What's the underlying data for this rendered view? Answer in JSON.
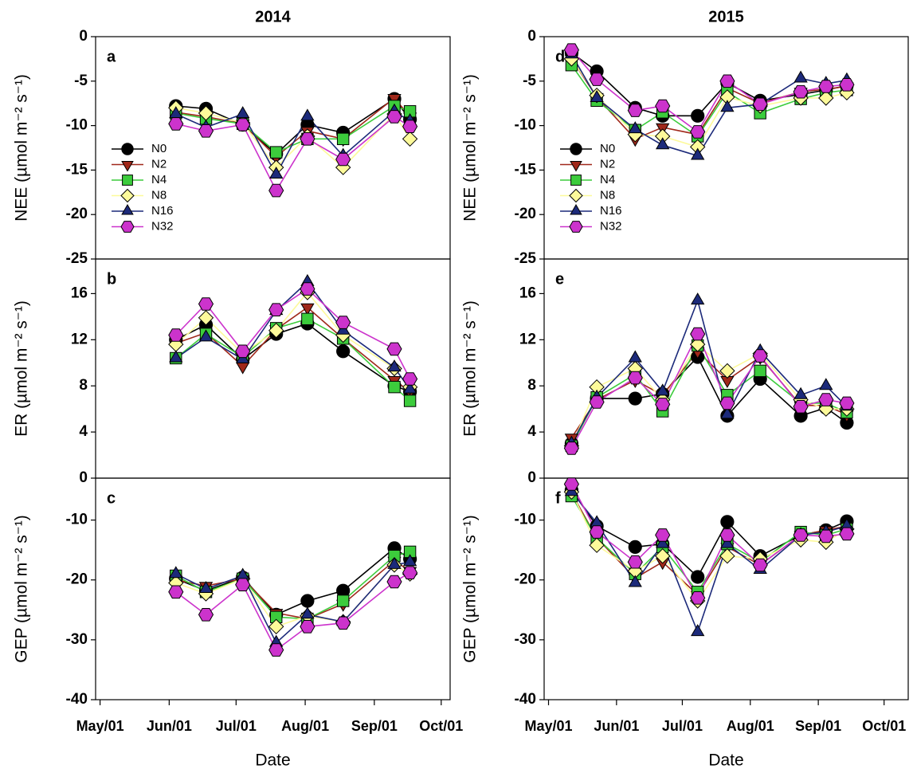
{
  "chart_data": [
    {
      "type": "line",
      "title": "2014",
      "label": "a",
      "ylabel": "NEE (µmol m⁻² s⁻¹)",
      "legend": true,
      "x": [
        155,
        168.5,
        185,
        200,
        214,
        230,
        253,
        260
      ],
      "xlim": [
        119,
        278
      ],
      "ylim": [
        -25,
        0
      ],
      "yticks": [
        0,
        -5,
        -10,
        -15,
        -20,
        -25
      ],
      "series": [
        {
          "name": "N0",
          "color": "#000000",
          "marker": "circle",
          "values": [
            -7.8,
            -8.1,
            -9.9,
            -13.2,
            -9.9,
            -10.8,
            -7.0,
            -9.3
          ]
        },
        {
          "name": "N2",
          "color": "#a0281a",
          "marker": "tri-down",
          "values": [
            -8.5,
            -9.0,
            -9.8,
            -13.5,
            -10.6,
            -11.5,
            -6.9,
            -9.0
          ]
        },
        {
          "name": "N4",
          "color": "#3ccc3c",
          "marker": "square",
          "values": [
            -8.6,
            -9.2,
            -9.8,
            -13.0,
            -11.5,
            -11.5,
            -7.8,
            -8.4
          ]
        },
        {
          "name": "N8",
          "color": "#fdfa9a",
          "marker": "diamond",
          "values": [
            -8.0,
            -8.6,
            -9.7,
            -14.7,
            -11.2,
            -14.7,
            -8.7,
            -11.5
          ]
        },
        {
          "name": "N16",
          "color": "#1c2a7a",
          "marker": "tri-up",
          "values": [
            -8.7,
            -10.2,
            -8.7,
            -15.5,
            -9.0,
            -13.4,
            -8.4,
            -9.5
          ]
        },
        {
          "name": "N32",
          "color": "#cc33cc",
          "marker": "hexagon",
          "values": [
            -9.8,
            -10.6,
            -9.9,
            -17.3,
            -11.5,
            -13.8,
            -9.0,
            -10.1
          ]
        }
      ]
    },
    {
      "type": "line",
      "label": "b",
      "ylabel": "ER (µmol m⁻² s⁻¹)",
      "x": [
        155,
        168.5,
        185,
        200,
        214,
        230,
        253,
        260
      ],
      "xlim": [
        119,
        278
      ],
      "ylim": [
        0,
        19
      ],
      "yticks": [
        0,
        4,
        8,
        12,
        16
      ],
      "series": [
        {
          "name": "N0",
          "color": "#000000",
          "marker": "circle",
          "values": [
            12.0,
            13.3,
            10.3,
            12.5,
            13.4,
            11.0,
            8.0,
            7.5
          ]
        },
        {
          "name": "N2",
          "color": "#a0281a",
          "marker": "tri-down",
          "values": [
            11.7,
            12.6,
            9.7,
            12.9,
            14.8,
            12.1,
            8.5,
            7.5
          ]
        },
        {
          "name": "N4",
          "color": "#3ccc3c",
          "marker": "square",
          "values": [
            10.4,
            12.5,
            10.5,
            13.0,
            13.8,
            12.1,
            7.9,
            6.7
          ]
        },
        {
          "name": "N8",
          "color": "#fdfa9a",
          "marker": "diamond",
          "values": [
            11.6,
            13.9,
            10.8,
            12.8,
            16.1,
            12.4,
            9.5,
            7.9
          ]
        },
        {
          "name": "N16",
          "color": "#1c2a7a",
          "marker": "tri-up",
          "values": [
            10.4,
            12.2,
            10.3,
            14.5,
            17.0,
            12.8,
            9.6,
            7.7
          ]
        },
        {
          "name": "N32",
          "color": "#cc33cc",
          "marker": "hexagon",
          "values": [
            12.4,
            15.1,
            11.0,
            14.6,
            16.4,
            13.5,
            11.2,
            8.6
          ]
        }
      ]
    },
    {
      "type": "line",
      "label": "c",
      "ylabel": "GEP (µmol m⁻² s⁻¹)",
      "xlabel": "Date",
      "x": [
        155,
        168.5,
        185,
        200,
        214,
        230,
        253,
        260
      ],
      "xlim": [
        119,
        278
      ],
      "ylim": [
        -40,
        -3
      ],
      "yticks": [
        -10,
        -20,
        -30,
        -40
      ],
      "xticks": [
        {
          "value": 121,
          "label": "May/01"
        },
        {
          "value": 152,
          "label": "Jun/01"
        },
        {
          "value": 182,
          "label": "Jul/01"
        },
        {
          "value": 213,
          "label": "Aug/01"
        },
        {
          "value": 244,
          "label": "Sep/01"
        },
        {
          "value": 274,
          "label": "Oct/01"
        }
      ],
      "series": [
        {
          "name": "N0",
          "color": "#000000",
          "marker": "circle",
          "values": [
            -19.8,
            -21.8,
            -19.6,
            -25.8,
            -23.5,
            -21.8,
            -14.7,
            -16.5
          ]
        },
        {
          "name": "N2",
          "color": "#a0281a",
          "marker": "tri-down",
          "values": [
            -20.0,
            -21.0,
            -19.8,
            -25.5,
            -26.5,
            -24.0,
            -16.8,
            -18.5
          ]
        },
        {
          "name": "N4",
          "color": "#3ccc3c",
          "marker": "square",
          "values": [
            -19.3,
            -22.0,
            -19.8,
            -26.2,
            -26.5,
            -23.5,
            -16.0,
            -15.3
          ]
        },
        {
          "name": "N8",
          "color": "#fdfa9a",
          "marker": "diamond",
          "values": [
            -20.5,
            -22.3,
            -19.8,
            -27.8,
            -26.0,
            -27.0,
            -17.5,
            -19.0
          ]
        },
        {
          "name": "N16",
          "color": "#1c2a7a",
          "marker": "tri-up",
          "values": [
            -19.0,
            -21.5,
            -19.3,
            -30.5,
            -25.8,
            -27.0,
            -17.5,
            -17.0
          ]
        },
        {
          "name": "N32",
          "color": "#cc33cc",
          "marker": "hexagon",
          "values": [
            -22.0,
            -25.8,
            -20.8,
            -31.7,
            -27.8,
            -27.2,
            -20.3,
            -18.8
          ]
        }
      ]
    },
    {
      "type": "line",
      "title": "2015",
      "label": "d",
      "ylabel": "NEE (µmol m⁻² s⁻¹)",
      "legend": true,
      "x": [
        131.5,
        143,
        160.5,
        173,
        189,
        202.5,
        217.5,
        236,
        247.5,
        257
      ],
      "xlim": [
        119,
        285
      ],
      "ylim": [
        -25,
        0
      ],
      "yticks": [
        0,
        -5,
        -10,
        -15,
        -20,
        -25
      ],
      "series": [
        {
          "name": "N0",
          "color": "#000000",
          "marker": "circle",
          "values": [
            -1.8,
            -3.9,
            -8.0,
            -8.9,
            -8.9,
            -5.2,
            -7.2,
            -6.5,
            -6.0,
            -5.5
          ]
        },
        {
          "name": "N2",
          "color": "#a0281a",
          "marker": "tri-down",
          "values": [
            -2.5,
            -6.8,
            -11.5,
            -10.2,
            -11.0,
            -5.8,
            -7.5,
            -6.2,
            -5.9,
            -5.6
          ]
        },
        {
          "name": "N4",
          "color": "#3ccc3c",
          "marker": "square",
          "values": [
            -3.2,
            -7.2,
            -10.5,
            -8.5,
            -11.2,
            -6.2,
            -8.6,
            -7.0,
            -6.3,
            -6.0
          ]
        },
        {
          "name": "N8",
          "color": "#fdfa9a",
          "marker": "diamond",
          "values": [
            -2.5,
            -6.6,
            -11.0,
            -11.2,
            -12.4,
            -6.8,
            -7.8,
            -6.9,
            -6.9,
            -6.3
          ]
        },
        {
          "name": "N16",
          "color": "#1c2a7a",
          "marker": "tri-up",
          "values": [
            -2.0,
            -6.9,
            -10.4,
            -12.2,
            -13.4,
            -8.0,
            -7.6,
            -4.7,
            -5.3,
            -4.9
          ]
        },
        {
          "name": "N32",
          "color": "#cc33cc",
          "marker": "hexagon",
          "values": [
            -1.5,
            -4.8,
            -8.3,
            -7.8,
            -10.7,
            -5.0,
            -7.6,
            -6.2,
            -5.6,
            -5.4
          ]
        }
      ]
    },
    {
      "type": "line",
      "label": "e",
      "ylabel": "ER (µmol m⁻² s⁻¹)",
      "x": [
        131.5,
        143,
        160.5,
        173,
        189,
        202.5,
        217.5,
        236,
        247.5,
        257
      ],
      "xlim": [
        119,
        285
      ],
      "ylim": [
        0,
        19
      ],
      "yticks": [
        0,
        4,
        8,
        12,
        16
      ],
      "series": [
        {
          "name": "N0",
          "color": "#000000",
          "marker": "circle",
          "values": [
            3.0,
            6.9,
            6.9,
            7.3,
            10.5,
            5.4,
            8.6,
            5.4,
            6.1,
            4.8
          ]
        },
        {
          "name": "N2",
          "color": "#a0281a",
          "marker": "tri-down",
          "values": [
            3.5,
            6.8,
            8.5,
            7.2,
            11.0,
            8.5,
            10.5,
            6.3,
            6.3,
            5.5
          ]
        },
        {
          "name": "N4",
          "color": "#3ccc3c",
          "marker": "square",
          "values": [
            2.8,
            7.0,
            9.0,
            5.8,
            11.5,
            7.2,
            9.3,
            6.5,
            6.5,
            5.7
          ]
        },
        {
          "name": "N8",
          "color": "#fdfa9a",
          "marker": "diamond",
          "values": [
            2.8,
            7.9,
            9.5,
            6.8,
            11.6,
            9.3,
            10.8,
            6.8,
            6.0,
            6.0
          ]
        },
        {
          "name": "N16",
          "color": "#1c2a7a",
          "marker": "tri-up",
          "values": [
            3.0,
            7.0,
            10.4,
            7.5,
            15.4,
            5.5,
            11.0,
            7.2,
            8.0,
            6.2
          ]
        },
        {
          "name": "N32",
          "color": "#cc33cc",
          "marker": "hexagon",
          "values": [
            2.6,
            6.6,
            8.7,
            6.4,
            12.5,
            6.5,
            10.6,
            6.2,
            6.8,
            6.5
          ]
        }
      ]
    },
    {
      "type": "line",
      "label": "f",
      "ylabel": "GEP (µmol m⁻² s⁻¹)",
      "xlabel": "Date",
      "x": [
        131.5,
        143,
        160.5,
        173,
        189,
        202.5,
        217.5,
        236,
        247.5,
        257
      ],
      "xlim": [
        119,
        285
      ],
      "ylim": [
        -40,
        -3
      ],
      "yticks": [
        -10,
        -20,
        -30,
        -40
      ],
      "xticks": [
        {
          "value": 121,
          "label": "May/01"
        },
        {
          "value": 152,
          "label": "Jun/01"
        },
        {
          "value": 182,
          "label": "Jul/01"
        },
        {
          "value": 213,
          "label": "Aug/01"
        },
        {
          "value": 244,
          "label": "Sep/01"
        },
        {
          "value": 274,
          "label": "Oct/01"
        }
      ],
      "series": [
        {
          "name": "N0",
          "color": "#000000",
          "marker": "circle",
          "values": [
            -5.0,
            -11.0,
            -14.5,
            -14.0,
            -19.5,
            -10.3,
            -16.0,
            -12.5,
            -11.7,
            -10.2
          ]
        },
        {
          "name": "N2",
          "color": "#a0281a",
          "marker": "tri-down",
          "values": [
            -5.5,
            -13.0,
            -19.7,
            -17.0,
            -22.5,
            -14.5,
            -17.5,
            -12.5,
            -11.7,
            -11.0
          ]
        },
        {
          "name": "N4",
          "color": "#3ccc3c",
          "marker": "square",
          "values": [
            -6.0,
            -13.0,
            -19.0,
            -14.5,
            -22.0,
            -14.0,
            -17.0,
            -12.0,
            -12.5,
            -11.5
          ]
        },
        {
          "name": "N8",
          "color": "#fdfa9a",
          "marker": "diamond",
          "values": [
            -5.3,
            -14.2,
            -18.5,
            -16.0,
            -23.5,
            -16.0,
            -16.5,
            -13.3,
            -13.7,
            -11.5
          ]
        },
        {
          "name": "N16",
          "color": "#1c2a7a",
          "marker": "tri-up",
          "values": [
            -5.3,
            -10.5,
            -20.5,
            -14.0,
            -28.7,
            -14.0,
            -18.3,
            -12.5,
            -12.0,
            -11.0
          ]
        },
        {
          "name": "N32",
          "color": "#cc33cc",
          "marker": "hexagon",
          "values": [
            -4.0,
            -12.0,
            -17.0,
            -12.5,
            -23.0,
            -12.5,
            -17.5,
            -12.5,
            -12.7,
            -12.3
          ]
        }
      ]
    }
  ]
}
